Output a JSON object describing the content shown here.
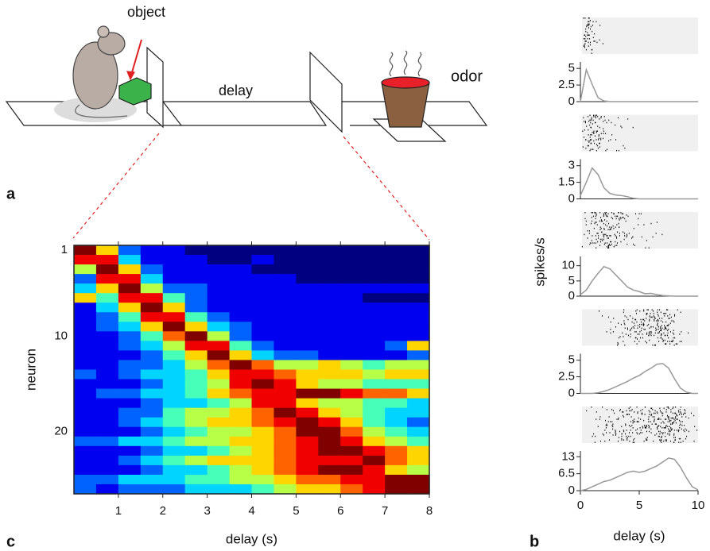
{
  "schematic": {
    "object": "object",
    "delay": "delay",
    "odor": "odor"
  },
  "panels": {
    "a": "a",
    "b": "b",
    "c": "c"
  },
  "chart_data": [
    {
      "type": "heatmap",
      "xlabel": "delay (s)",
      "ylabel": "neuron",
      "xlim": [
        0,
        8
      ],
      "xticks": [
        1,
        2,
        3,
        4,
        5,
        6,
        7,
        8
      ],
      "ylim": [
        0.5,
        26.5
      ],
      "yticks": [
        1,
        10,
        20
      ],
      "values": [
        [
          9,
          6,
          2,
          1,
          1,
          0,
          0,
          0,
          0,
          0,
          0,
          0,
          0,
          0,
          0,
          0
        ],
        [
          8,
          8,
          3,
          1,
          1,
          1,
          0,
          0,
          1,
          0,
          0,
          0,
          0,
          0,
          0,
          0
        ],
        [
          5,
          9,
          6,
          2,
          1,
          1,
          1,
          1,
          0,
          0,
          0,
          0,
          0,
          0,
          0,
          0
        ],
        [
          2,
          8,
          8,
          3,
          1,
          1,
          1,
          1,
          1,
          1,
          0,
          0,
          0,
          0,
          0,
          0
        ],
        [
          3,
          6,
          9,
          5,
          2,
          2,
          1,
          1,
          1,
          1,
          1,
          1,
          1,
          1,
          1,
          1
        ],
        [
          6,
          4,
          8,
          8,
          4,
          2,
          1,
          1,
          1,
          1,
          1,
          1,
          1,
          0,
          0,
          0
        ],
        [
          1,
          3,
          6,
          9,
          6,
          2,
          1,
          1,
          1,
          1,
          1,
          1,
          1,
          1,
          1,
          1
        ],
        [
          1,
          2,
          4,
          8,
          8,
          4,
          2,
          1,
          1,
          1,
          1,
          1,
          1,
          1,
          1,
          1
        ],
        [
          1,
          2,
          3,
          6,
          9,
          6,
          3,
          2,
          1,
          1,
          1,
          1,
          1,
          1,
          1,
          1
        ],
        [
          1,
          1,
          2,
          4,
          7,
          9,
          5,
          2,
          1,
          1,
          1,
          1,
          1,
          1,
          1,
          1
        ],
        [
          1,
          1,
          2,
          3,
          5,
          8,
          8,
          4,
          2,
          1,
          1,
          1,
          1,
          1,
          2,
          6
        ],
        [
          1,
          1,
          1,
          2,
          4,
          6,
          9,
          6,
          3,
          2,
          2,
          1,
          1,
          1,
          1,
          2
        ],
        [
          1,
          1,
          2,
          2,
          3,
          5,
          7,
          9,
          7,
          5,
          5,
          6,
          5,
          4,
          5,
          5
        ],
        [
          2,
          1,
          2,
          3,
          3,
          4,
          6,
          8,
          8,
          7,
          6,
          6,
          6,
          5,
          6,
          6
        ],
        [
          1,
          1,
          1,
          2,
          3,
          4,
          5,
          8,
          9,
          8,
          6,
          5,
          5,
          4,
          4,
          4
        ],
        [
          1,
          2,
          2,
          3,
          3,
          4,
          6,
          7,
          8,
          8,
          9,
          9,
          8,
          7,
          7,
          6
        ],
        [
          1,
          1,
          1,
          2,
          3,
          3,
          4,
          5,
          8,
          8,
          6,
          5,
          5,
          4,
          4,
          3
        ],
        [
          1,
          1,
          2,
          2,
          4,
          5,
          5,
          6,
          7,
          9,
          8,
          6,
          5,
          4,
          3,
          3
        ],
        [
          1,
          1,
          2,
          3,
          4,
          5,
          6,
          6,
          7,
          8,
          9,
          8,
          6,
          4,
          3,
          2
        ],
        [
          1,
          1,
          1,
          2,
          3,
          4,
          5,
          5,
          6,
          7,
          9,
          9,
          7,
          5,
          4,
          3
        ],
        [
          2,
          2,
          3,
          3,
          4,
          5,
          5,
          6,
          6,
          7,
          8,
          9,
          8,
          6,
          5,
          4
        ],
        [
          1,
          1,
          1,
          2,
          3,
          3,
          4,
          5,
          6,
          7,
          8,
          9,
          9,
          8,
          7,
          6
        ],
        [
          1,
          1,
          2,
          3,
          4,
          5,
          6,
          6,
          6,
          7,
          8,
          8,
          8,
          9,
          7,
          6
        ],
        [
          1,
          1,
          1,
          2,
          3,
          3,
          4,
          5,
          6,
          7,
          8,
          9,
          9,
          8,
          6,
          5
        ],
        [
          2,
          2,
          3,
          3,
          3,
          4,
          4,
          5,
          5,
          6,
          7,
          7,
          8,
          8,
          9,
          9
        ],
        [
          2,
          1,
          2,
          2,
          2,
          3,
          3,
          3,
          4,
          5,
          6,
          6,
          7,
          8,
          9,
          9
        ]
      ]
    },
    {
      "type": "psth",
      "xlim": [
        0,
        10
      ],
      "ylim": [
        0,
        5.5
      ],
      "yticks": [
        0,
        2.5,
        5
      ],
      "x": [
        0,
        0.5,
        1,
        1.5,
        2,
        2.5,
        3,
        3.5,
        4,
        4.5,
        5,
        5.5,
        6,
        6.5,
        7,
        7.5,
        8,
        8.5,
        9,
        9.5,
        10
      ],
      "values": [
        0,
        4.8,
        2.6,
        0.6,
        0.1,
        0,
        0,
        0,
        0,
        0,
        0,
        0,
        0,
        0,
        0,
        0,
        0,
        0,
        0,
        0,
        0
      ],
      "color": "#999999"
    },
    {
      "type": "psth",
      "xlim": [
        0,
        10
      ],
      "ylim": [
        0,
        3.3
      ],
      "yticks": [
        0,
        1.5,
        3
      ],
      "x": [
        0,
        0.5,
        1,
        1.5,
        2,
        2.5,
        3,
        3.5,
        4,
        4.5,
        5,
        5.5,
        6,
        6.5,
        7,
        7.5,
        8,
        8.5,
        9,
        9.5,
        10
      ],
      "values": [
        0.3,
        1.5,
        2.8,
        2.2,
        1.0,
        0.5,
        0.35,
        0.3,
        0.2,
        0.05,
        0,
        0,
        0,
        0,
        0,
        0,
        0,
        0,
        0,
        0,
        0
      ],
      "color": "#999999"
    },
    {
      "type": "psth",
      "xlim": [
        0,
        10
      ],
      "ylim": [
        0,
        12
      ],
      "yticks": [
        0,
        5,
        10
      ],
      "ylabel": "spikes/s",
      "x": [
        0,
        0.5,
        1,
        1.5,
        2,
        2.5,
        3,
        3.5,
        4,
        4.5,
        5,
        5.5,
        6,
        6.5,
        7,
        7.5,
        8,
        8.5,
        9,
        9.5,
        10
      ],
      "values": [
        0.5,
        2,
        5,
        7.5,
        9.7,
        9,
        7,
        5,
        3,
        2,
        1.5,
        0.8,
        0.9,
        0.5,
        0.2,
        0.1,
        0,
        0,
        0,
        0,
        0
      ],
      "color": "#999999"
    },
    {
      "type": "psth",
      "xlim": [
        0,
        10
      ],
      "ylim": [
        0,
        5.5
      ],
      "yticks": [
        0,
        2.5,
        5
      ],
      "x": [
        0,
        0.5,
        1,
        1.5,
        2,
        2.5,
        3,
        3.5,
        4,
        4.5,
        5,
        5.5,
        6,
        6.5,
        7,
        7.5,
        8,
        8.5,
        9,
        9.5,
        10
      ],
      "values": [
        0,
        0,
        0,
        0.1,
        0.3,
        0.6,
        1.0,
        1.4,
        1.8,
        2.3,
        2.7,
        3.3,
        3.8,
        4.4,
        4.5,
        3.8,
        2.2,
        0.8,
        0.2,
        0,
        0
      ],
      "color": "#999999"
    },
    {
      "type": "psth",
      "xlim": [
        0,
        10
      ],
      "ylim": [
        0,
        14
      ],
      "yticks": [
        0,
        6.5,
        13
      ],
      "xticks": [
        0,
        5,
        10
      ],
      "xlabel": "delay (s)",
      "x": [
        0,
        0.5,
        1,
        1.5,
        2,
        2.5,
        3,
        3.5,
        4,
        4.5,
        5,
        5.5,
        6,
        6.5,
        7,
        7.5,
        8,
        8.5,
        9,
        9.5,
        10
      ],
      "values": [
        0,
        0.5,
        1.5,
        2.5,
        3.5,
        4,
        5,
        6,
        7,
        7.5,
        7,
        7.5,
        8.5,
        9.5,
        11,
        12.5,
        12,
        9,
        5,
        1.5,
        0.3
      ],
      "color": "#999999"
    }
  ]
}
